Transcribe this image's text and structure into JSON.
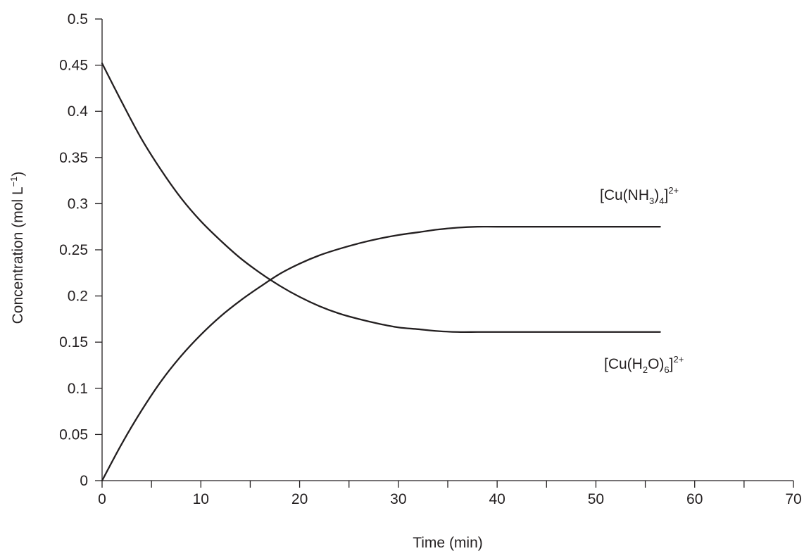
{
  "chart_data": {
    "type": "line",
    "xlabel": "Time (min)",
    "ylabel": {
      "main": "Concentration (mol L",
      "superscript": "−1",
      "close": ")"
    },
    "xlim": [
      0,
      70
    ],
    "ylim": [
      0,
      0.5
    ],
    "x_ticks_major": [
      0,
      10,
      20,
      30,
      40,
      50,
      60,
      70
    ],
    "x_ticks_minor": [
      5,
      15,
      25,
      35,
      45,
      55,
      65
    ],
    "x_tick_labels": [
      "0",
      "10",
      "20",
      "30",
      "40",
      "50",
      "60",
      "70"
    ],
    "y_ticks": [
      0,
      0.05,
      0.1,
      0.15,
      0.2,
      0.25,
      0.3,
      0.35,
      0.4,
      0.45,
      0.5
    ],
    "y_tick_labels": [
      "0",
      "0.05",
      "0.1",
      "0.15",
      "0.2",
      "0.25",
      "0.3",
      "0.35",
      "0.4",
      "0.45",
      "0.5"
    ],
    "grid": false,
    "legend": "none",
    "series": [
      {
        "name": "[Cu(NH3)4]2+",
        "label_parts": {
          "pre": "[Cu(NH",
          "sub1": "3",
          "mid": ")",
          "sub2": "4",
          "post": "]",
          "sup": "2+"
        },
        "color": "#231f20",
        "x": [
          0,
          2,
          4,
          6,
          8,
          10,
          12,
          14,
          16,
          18,
          20,
          22,
          24,
          26,
          28,
          30,
          32,
          34,
          36,
          38,
          40,
          45,
          50,
          56.5
        ],
        "values": [
          0,
          0.04,
          0.076,
          0.108,
          0.135,
          0.158,
          0.178,
          0.195,
          0.21,
          0.224,
          0.235,
          0.244,
          0.251,
          0.257,
          0.262,
          0.266,
          0.269,
          0.272,
          0.274,
          0.275,
          0.275,
          0.275,
          0.275,
          0.275
        ]
      },
      {
        "name": "[Cu(H2O)6]2+",
        "label_parts": {
          "pre": "[Cu(H",
          "sub1": "2",
          "mid": "O)",
          "sub2": "6",
          "post": "]",
          "sup": "2+"
        },
        "color": "#231f20",
        "x": [
          0,
          2,
          4,
          6,
          8,
          10,
          12,
          14,
          16,
          18,
          20,
          22,
          24,
          26,
          28,
          30,
          32,
          34,
          36,
          38,
          40,
          45,
          50,
          56.5
        ],
        "values": [
          0.452,
          0.41,
          0.37,
          0.336,
          0.306,
          0.281,
          0.26,
          0.241,
          0.225,
          0.211,
          0.199,
          0.189,
          0.181,
          0.175,
          0.17,
          0.166,
          0.164,
          0.162,
          0.161,
          0.161,
          0.161,
          0.161,
          0.161,
          0.161
        ]
      }
    ]
  }
}
